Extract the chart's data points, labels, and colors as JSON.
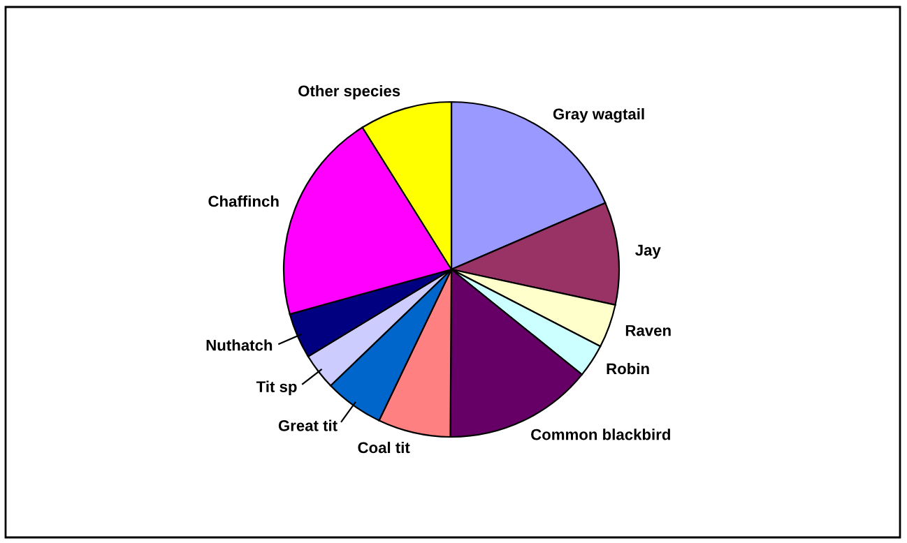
{
  "chart_data": {
    "type": "pie",
    "categories": [
      "Gray wagtail",
      "Jay",
      "Raven",
      "Robin",
      "Common blackbird",
      "Coal tit",
      "Great tit",
      "Tit sp",
      "Nuthatch",
      "Chaffinch",
      "Other species"
    ],
    "values": [
      18.5,
      9.9,
      4.2,
      3.2,
      14.3,
      7.0,
      5.7,
      3.5,
      4.4,
      20.4,
      8.9
    ],
    "colors": [
      "#9999ff",
      "#993366",
      "#ffffcc",
      "#ccffff",
      "#660066",
      "#ff8080",
      "#0066cc",
      "#ccccff",
      "#000080",
      "#ff00ff",
      "#ffff00"
    ]
  }
}
